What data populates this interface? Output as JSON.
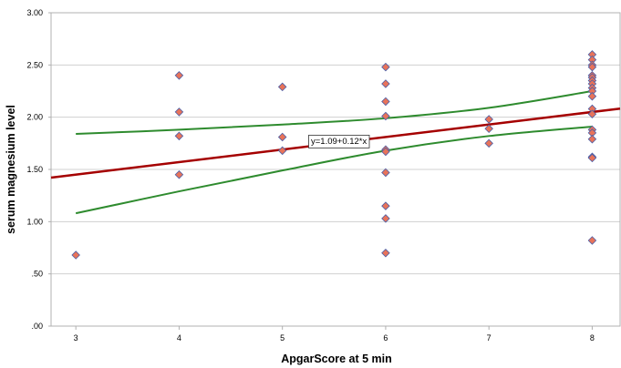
{
  "chart_data": {
    "type": "scatter",
    "xlabel": "ApgarScore at 5 min",
    "ylabel": "serum magnesium level",
    "xlim": [
      2.76,
      8.27
    ],
    "ylim": [
      0,
      3
    ],
    "x_ticks": [
      3,
      4,
      5,
      6,
      7,
      8
    ],
    "x_tick_labels": [
      "3",
      "4",
      "5",
      "6",
      "7",
      "8"
    ],
    "y_ticks": [
      0,
      0.5,
      1,
      1.5,
      2,
      2.5,
      3
    ],
    "y_tick_labels": [
      ".00",
      ".50",
      "1.00",
      "1.50",
      "2.00",
      "2.50",
      "3.00"
    ],
    "grid": "horizontal",
    "colors": {
      "marker_fill": "#e8735a",
      "marker_edge": "#4a5fa8",
      "fit_line": "#a50000",
      "ci_lines": "#2e8b2e",
      "gridline": "#d0d0d0",
      "frame": "#b0b0b0"
    },
    "points": [
      {
        "x": 3,
        "y": 0.68
      },
      {
        "x": 4,
        "y": 2.4
      },
      {
        "x": 4,
        "y": 2.05
      },
      {
        "x": 4,
        "y": 1.82
      },
      {
        "x": 4,
        "y": 1.45
      },
      {
        "x": 5,
        "y": 2.29
      },
      {
        "x": 5,
        "y": 1.81
      },
      {
        "x": 5,
        "y": 1.68
      },
      {
        "x": 6,
        "y": 2.48
      },
      {
        "x": 6,
        "y": 2.32
      },
      {
        "x": 6,
        "y": 2.15
      },
      {
        "x": 6,
        "y": 2.01
      },
      {
        "x": 6,
        "y": 1.69
      },
      {
        "x": 6,
        "y": 1.67
      },
      {
        "x": 6,
        "y": 1.47
      },
      {
        "x": 6,
        "y": 1.15
      },
      {
        "x": 6,
        "y": 1.03
      },
      {
        "x": 6,
        "y": 0.7
      },
      {
        "x": 7,
        "y": 1.98
      },
      {
        "x": 7,
        "y": 1.89
      },
      {
        "x": 7,
        "y": 1.75
      },
      {
        "x": 8,
        "y": 2.6
      },
      {
        "x": 8,
        "y": 2.55
      },
      {
        "x": 8,
        "y": 2.5
      },
      {
        "x": 8,
        "y": 2.48
      },
      {
        "x": 8,
        "y": 2.4
      },
      {
        "x": 8,
        "y": 2.38
      },
      {
        "x": 8,
        "y": 2.35
      },
      {
        "x": 8,
        "y": 2.32
      },
      {
        "x": 8,
        "y": 2.28
      },
      {
        "x": 8,
        "y": 2.25
      },
      {
        "x": 8,
        "y": 2.2
      },
      {
        "x": 8,
        "y": 2.08
      },
      {
        "x": 8,
        "y": 2.03
      },
      {
        "x": 8,
        "y": 1.88
      },
      {
        "x": 8,
        "y": 1.85
      },
      {
        "x": 8,
        "y": 1.79
      },
      {
        "x": 8,
        "y": 1.62
      },
      {
        "x": 8,
        "y": 1.61
      },
      {
        "x": 8,
        "y": 0.82
      }
    ],
    "fit": {
      "intercept": 1.09,
      "slope": 0.12
    },
    "ci_upper": [
      {
        "x": 3,
        "y": 1.84
      },
      {
        "x": 4,
        "y": 1.88
      },
      {
        "x": 5,
        "y": 1.93
      },
      {
        "x": 6,
        "y": 1.99
      },
      {
        "x": 7,
        "y": 2.09
      },
      {
        "x": 8,
        "y": 2.25
      }
    ],
    "ci_lower": [
      {
        "x": 3,
        "y": 1.08
      },
      {
        "x": 4,
        "y": 1.29
      },
      {
        "x": 5,
        "y": 1.49
      },
      {
        "x": 6,
        "y": 1.68
      },
      {
        "x": 7,
        "y": 1.82
      },
      {
        "x": 8,
        "y": 1.91
      }
    ],
    "equation_label": "y=1.09+0.12*x",
    "equation_anchor": {
      "x": 5.25,
      "y": 1.78
    }
  }
}
